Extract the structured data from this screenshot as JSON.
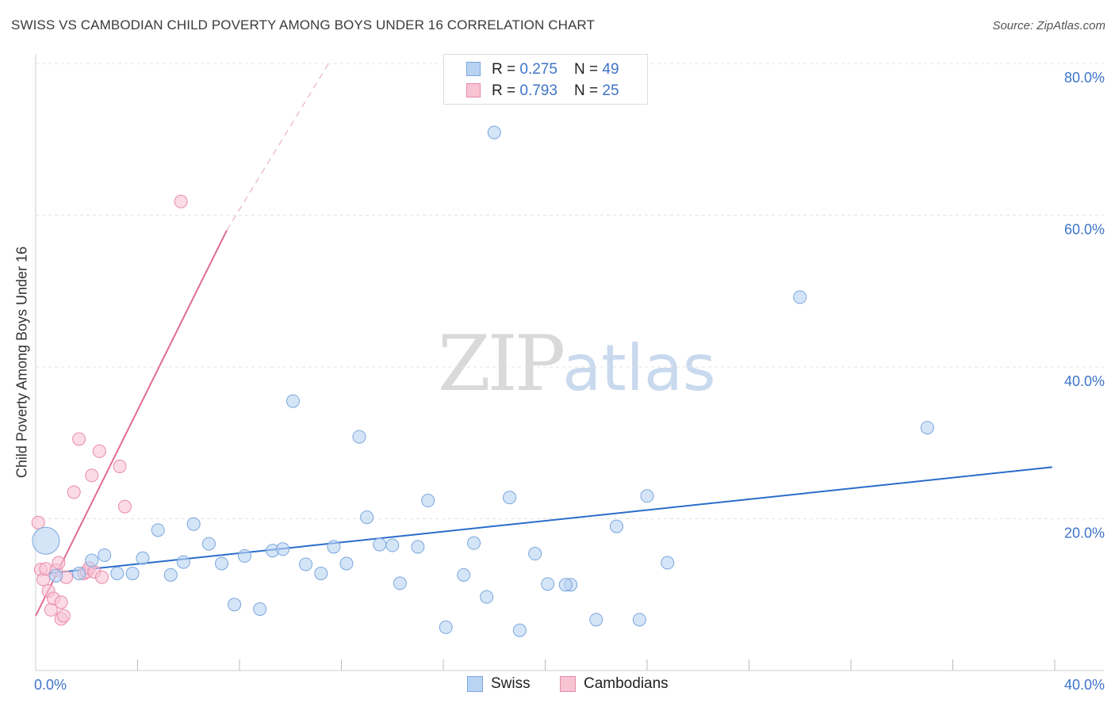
{
  "header": {
    "title": "SWISS VS CAMBODIAN CHILD POVERTY AMONG BOYS UNDER 16 CORRELATION CHART",
    "source": "Source: ZipAtlas.com"
  },
  "legend": {
    "swiss": {
      "r_label": "R = ",
      "r_value": "0.275",
      "n_label": "N = ",
      "n_value": "49"
    },
    "cambodians": {
      "r_label": "R = ",
      "r_value": "0.793",
      "n_label": "N = ",
      "n_value": "25"
    }
  },
  "bottom_legend": {
    "swiss": "Swiss",
    "cambodians": "Cambodians"
  },
  "watermark": {
    "zip": "ZIP",
    "atlas": "atlas"
  },
  "colors": {
    "swiss_fill": "#b9d3f3",
    "swiss_stroke": "#7aa6dd",
    "swiss_line": "#2a6ccb",
    "camb_fill": "#f8c3d3",
    "camb_stroke": "#e88aa8",
    "camb_line": "#e06c95",
    "axis_text": "#3f74c9"
  },
  "chart_data": {
    "type": "scatter",
    "title": "SWISS VS CAMBODIAN CHILD POVERTY AMONG BOYS UNDER 16 CORRELATION CHART",
    "xlabel": "",
    "ylabel": "Child Poverty Among Boys Under 16",
    "xlim": [
      0,
      40
    ],
    "ylim": [
      0,
      80
    ],
    "x_tick_labels": [
      "0.0%",
      "40.0%"
    ],
    "y_ticks": [
      20,
      40,
      60,
      80
    ],
    "y_tick_labels": [
      "20.0%",
      "40.0%",
      "60.0%",
      "80.0%"
    ],
    "grid": true,
    "legend_position": "top-center",
    "series": [
      {
        "name": "Swiss",
        "R": 0.275,
        "N": 49,
        "points": [
          [
            0.4,
            17.1,
            "big"
          ],
          [
            0.8,
            12.5
          ],
          [
            1.7,
            12.8
          ],
          [
            2.2,
            14.5
          ],
          [
            2.7,
            15.2
          ],
          [
            3.2,
            12.8
          ],
          [
            3.8,
            12.8
          ],
          [
            4.2,
            14.8
          ],
          [
            4.8,
            18.5
          ],
          [
            5.3,
            12.6
          ],
          [
            5.8,
            14.3
          ],
          [
            6.2,
            19.3
          ],
          [
            6.8,
            16.7
          ],
          [
            7.3,
            14.1
          ],
          [
            7.8,
            8.7
          ],
          [
            8.2,
            15.1
          ],
          [
            8.8,
            8.1
          ],
          [
            9.3,
            15.8
          ],
          [
            9.7,
            16.0
          ],
          [
            10.1,
            35.5
          ],
          [
            10.6,
            14.0
          ],
          [
            11.2,
            12.8
          ],
          [
            11.7,
            16.3
          ],
          [
            12.2,
            14.1
          ],
          [
            12.7,
            30.8
          ],
          [
            13.0,
            20.2
          ],
          [
            13.5,
            16.6
          ],
          [
            14.0,
            16.5
          ],
          [
            14.3,
            11.5
          ],
          [
            15.0,
            16.3
          ],
          [
            15.4,
            22.4
          ],
          [
            16.1,
            5.7
          ],
          [
            16.8,
            12.6
          ],
          [
            17.2,
            16.8
          ],
          [
            17.7,
            9.7
          ],
          [
            18.0,
            70.9
          ],
          [
            18.6,
            22.8
          ],
          [
            19.0,
            5.3
          ],
          [
            19.6,
            15.4
          ],
          [
            20.1,
            11.4
          ],
          [
            21.0,
            11.3
          ],
          [
            22.0,
            6.7
          ],
          [
            22.8,
            19.0
          ],
          [
            23.7,
            6.7
          ],
          [
            24.0,
            23.0
          ],
          [
            24.8,
            14.2
          ],
          [
            30.0,
            49.2
          ],
          [
            35.0,
            32.0
          ],
          [
            20.8,
            11.3
          ]
        ],
        "trend": {
          "x1": 0.5,
          "y1": 12.8,
          "x2": 39.9,
          "y2": 26.8
        }
      },
      {
        "name": "Cambodians",
        "R": 0.793,
        "N": 25,
        "points": [
          [
            0.1,
            19.5
          ],
          [
            0.2,
            13.3
          ],
          [
            0.3,
            12.0
          ],
          [
            0.4,
            13.4
          ],
          [
            0.5,
            10.5
          ],
          [
            0.6,
            8.0
          ],
          [
            0.7,
            9.5
          ],
          [
            0.8,
            13.2
          ],
          [
            0.9,
            14.2
          ],
          [
            1.0,
            9.0
          ],
          [
            1.0,
            6.8
          ],
          [
            1.1,
            7.2
          ],
          [
            1.2,
            12.3
          ],
          [
            1.5,
            23.5
          ],
          [
            1.7,
            30.5
          ],
          [
            1.9,
            12.8
          ],
          [
            2.0,
            13.0
          ],
          [
            2.1,
            13.5
          ],
          [
            2.2,
            25.7
          ],
          [
            2.3,
            13.0
          ],
          [
            2.5,
            28.9
          ],
          [
            2.6,
            12.3
          ],
          [
            3.3,
            26.9
          ],
          [
            3.5,
            21.6
          ],
          [
            5.7,
            61.8
          ]
        ],
        "trend_solid": {
          "x1": 0.0,
          "y1": 7.2,
          "x2": 7.5,
          "y2": 58.0
        },
        "trend_dashed": {
          "x1": 7.5,
          "y1": 58.0,
          "x2": 11.5,
          "y2": 80.0
        }
      }
    ]
  },
  "axis": {
    "y_title": "Child Poverty Among Boys Under 16",
    "x_min_label": "0.0%",
    "x_max_label": "40.0%",
    "y_labels": [
      "20.0%",
      "40.0%",
      "60.0%",
      "80.0%"
    ]
  }
}
